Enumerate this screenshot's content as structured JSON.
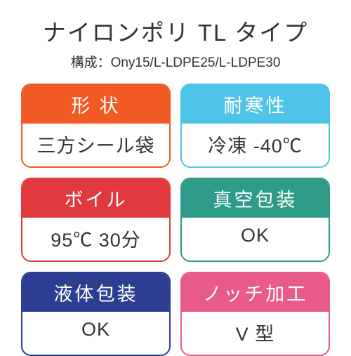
{
  "title": "ナイロンポリ TL タイプ",
  "subtitle": "構成：Ony15/L-LDPE25/L-LDPE30",
  "cards": [
    {
      "header": "形 状",
      "body": "三方シール袋",
      "color": "#f15a24"
    },
    {
      "header": "耐寒性",
      "body": "冷凍 -40℃",
      "color": "#4fc3e8"
    },
    {
      "header": "ボイル",
      "body": "95℃ 30分",
      "color": "#e03a3e"
    },
    {
      "header": "真空包装",
      "body": "OK",
      "color": "#2d9b87"
    },
    {
      "header": "液体包装",
      "body": "OK",
      "color": "#2c3e8f"
    },
    {
      "header": "ノッチ加工",
      "body": "V 型",
      "color": "#e85a8a"
    }
  ]
}
